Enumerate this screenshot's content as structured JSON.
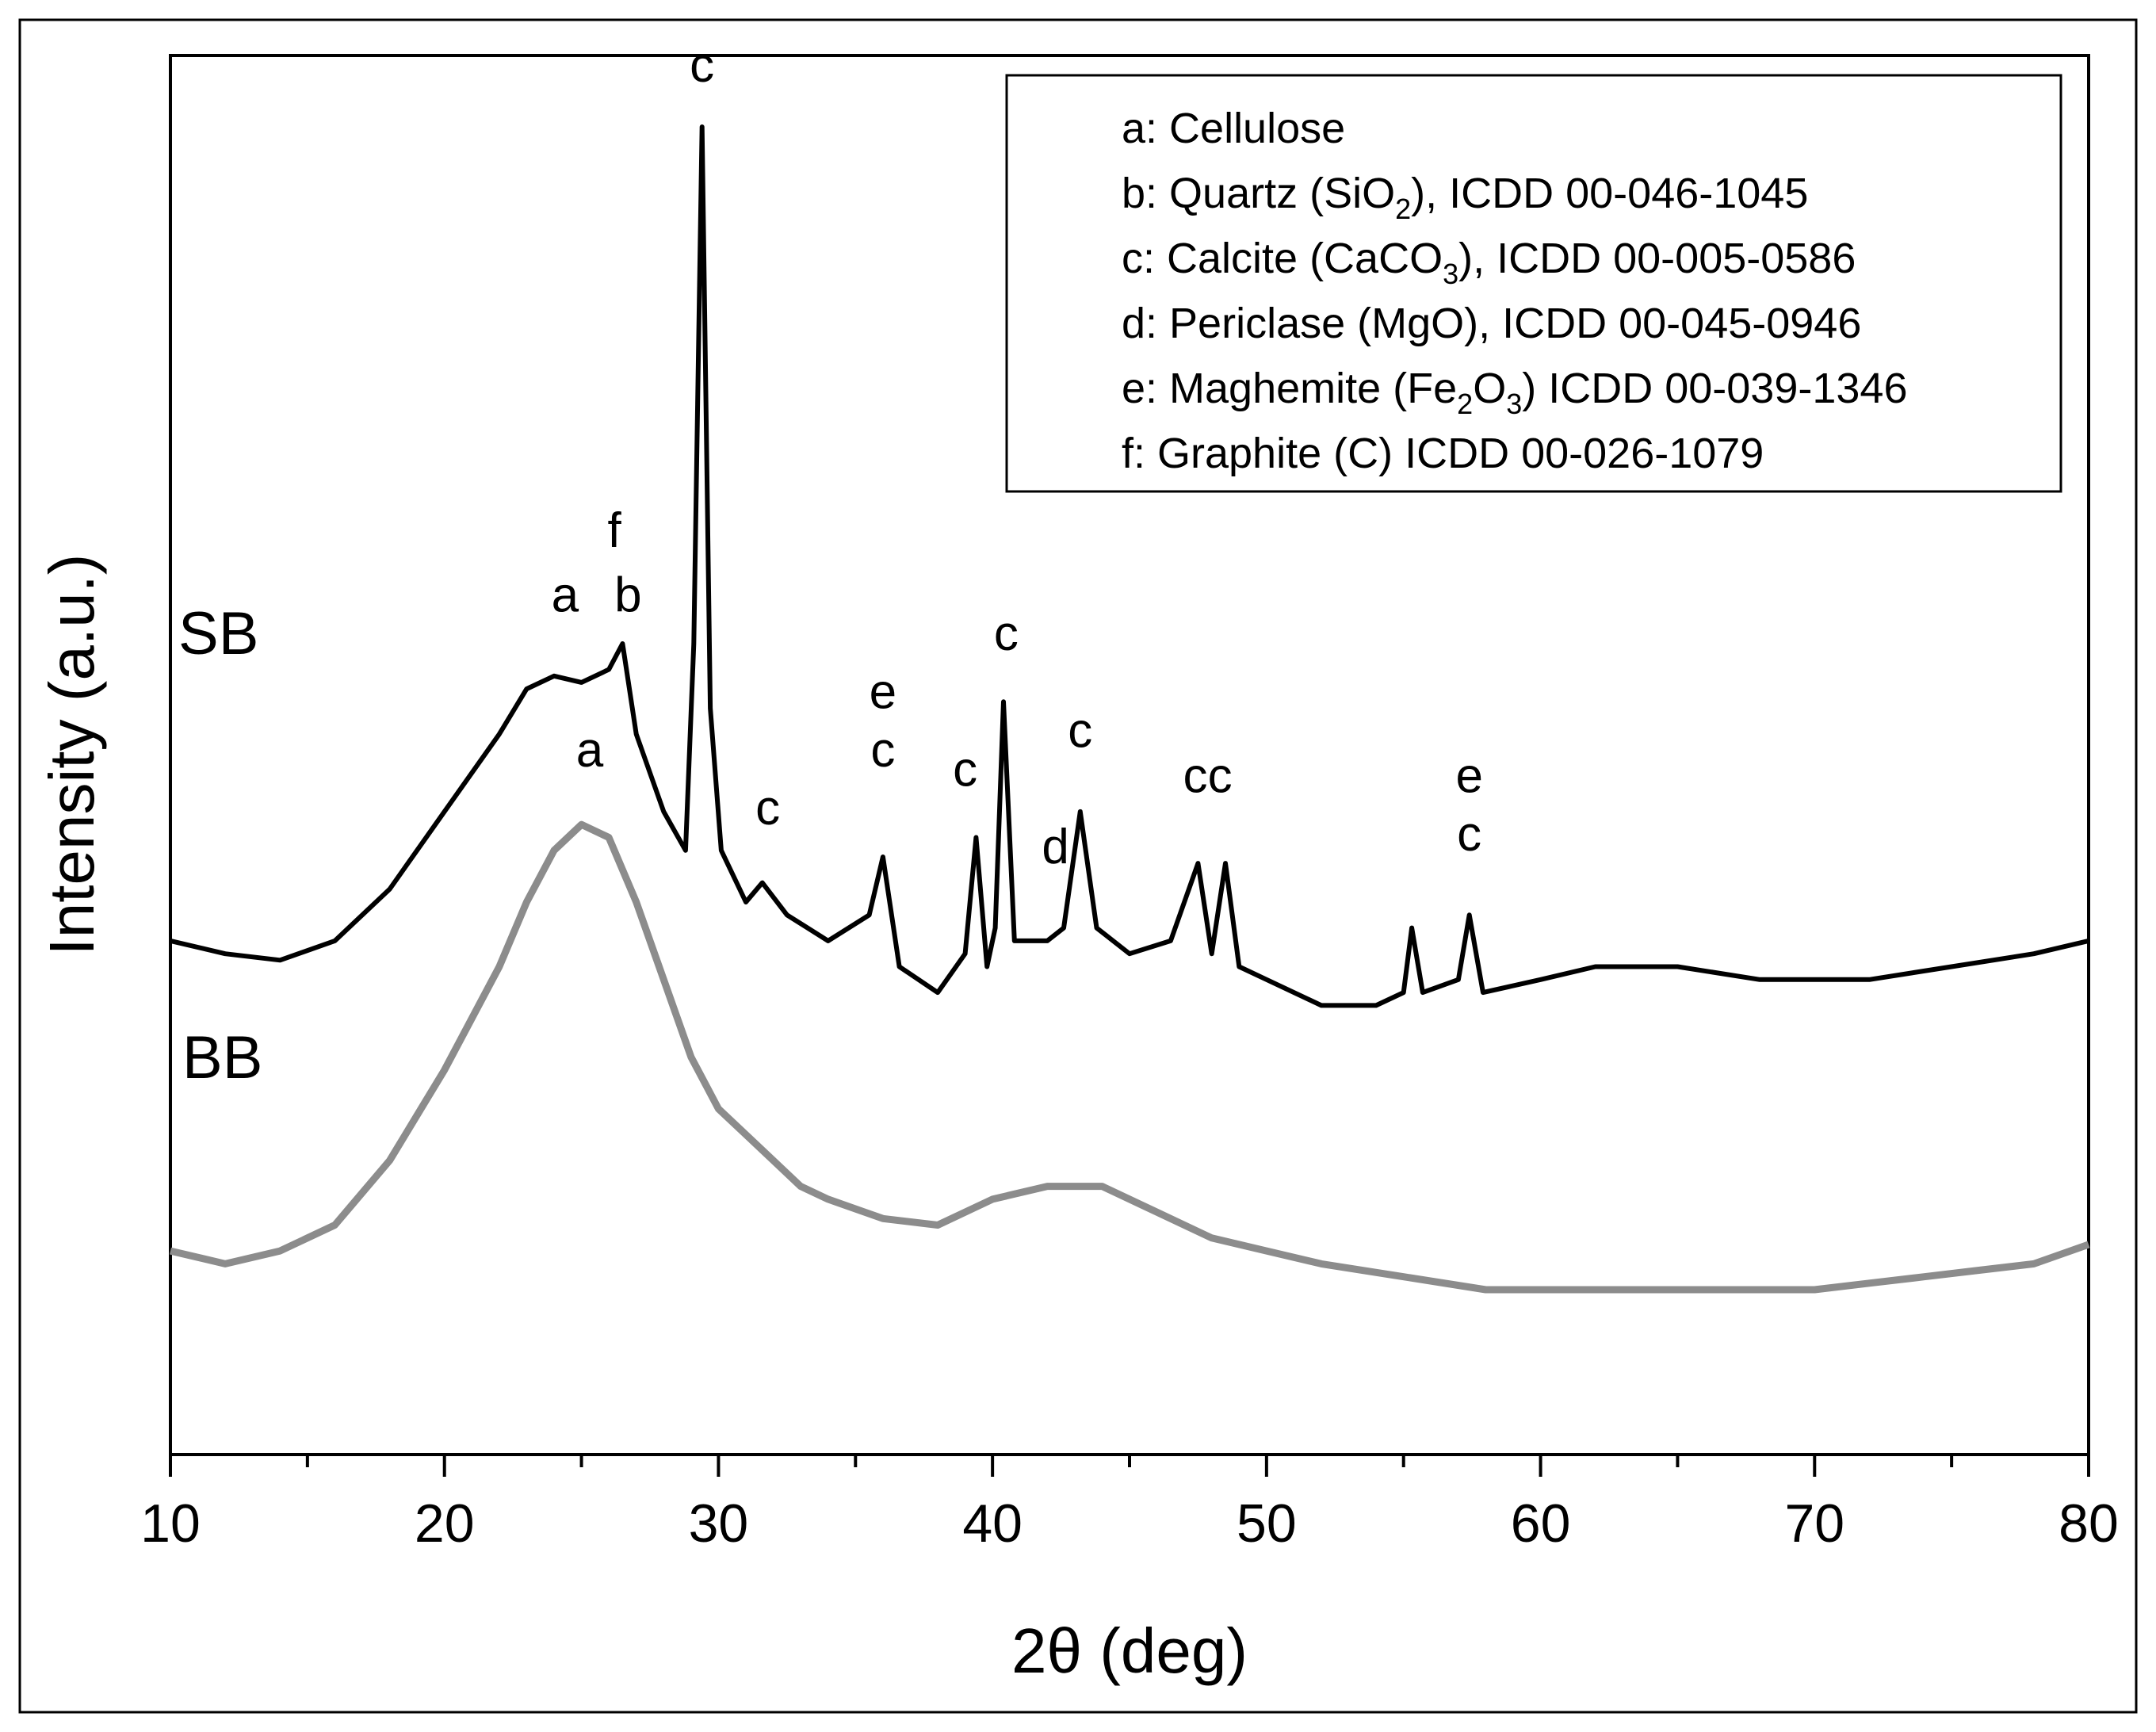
{
  "chart_data": {
    "type": "line",
    "xlabel": "2θ (deg)",
    "ylabel": "Intensity (a.u.)",
    "xlim": [
      10,
      80
    ],
    "ylim": [
      0,
      1
    ],
    "xticks": [
      10,
      20,
      30,
      40,
      50,
      60,
      70,
      80
    ],
    "xtick_labels": [
      "10",
      "20",
      "30",
      "40",
      "50",
      "60",
      "70",
      "80"
    ],
    "legend": {
      "placement": "top-right",
      "entries": [
        {
          "prefix": "a: Cellulose",
          "sub1": "",
          "mid": "",
          "sub2": "",
          "suffix": ""
        },
        {
          "prefix": "b: Quartz (SiO",
          "sub1": "2",
          "mid": "",
          "sub2": "",
          "suffix": "), ICDD 00-046-1045"
        },
        {
          "prefix": "c: Calcite (CaCO",
          "sub1": "3",
          "mid": "",
          "sub2": "",
          "suffix": "), ICDD 00-005-0586"
        },
        {
          "prefix": "d: Periclase (MgO), ICDD 00-045-0946",
          "sub1": "",
          "mid": "",
          "sub2": "",
          "suffix": ""
        },
        {
          "prefix": "e: Maghemite (Fe",
          "sub1": "2",
          "mid": "O",
          "sub2": "3",
          "suffix": ") ICDD 00-039-1346"
        },
        {
          "prefix": "f: Graphite (C) ICDD 00-026-1079",
          "sub1": "",
          "mid": "",
          "sub2": "",
          "suffix": ""
        }
      ]
    },
    "series": [
      {
        "name": "SB",
        "color": "#000000",
        "x": [
          10,
          12,
          14,
          16,
          18,
          20,
          21,
          22,
          23,
          24,
          25,
          26,
          26.5,
          27,
          28,
          28.8,
          29.1,
          29.4,
          29.7,
          30.1,
          31,
          31.6,
          32.5,
          34,
          35.5,
          36,
          36.6,
          38,
          39,
          39.4,
          39.8,
          40.1,
          40.4,
          40.8,
          42,
          42.6,
          43.2,
          43.8,
          45,
          46.5,
          47.5,
          48,
          48.5,
          49,
          50,
          52,
          54,
          55,
          55.3,
          55.7,
          57,
          57.4,
          57.9,
          60,
          62,
          65,
          68,
          70,
          72,
          75,
          78,
          80
        ],
        "y": [
          0.37,
          0.36,
          0.355,
          0.37,
          0.41,
          0.47,
          0.5,
          0.53,
          0.565,
          0.575,
          0.57,
          0.58,
          0.6,
          0.53,
          0.47,
          0.44,
          0.6,
          1.0,
          0.55,
          0.44,
          0.4,
          0.415,
          0.39,
          0.37,
          0.39,
          0.435,
          0.35,
          0.33,
          0.36,
          0.45,
          0.35,
          0.38,
          0.555,
          0.37,
          0.37,
          0.38,
          0.47,
          0.38,
          0.36,
          0.37,
          0.43,
          0.36,
          0.43,
          0.35,
          0.34,
          0.32,
          0.32,
          0.33,
          0.38,
          0.33,
          0.34,
          0.39,
          0.33,
          0.34,
          0.35,
          0.35,
          0.34,
          0.34,
          0.34,
          0.35,
          0.36,
          0.37
        ]
      },
      {
        "name": "BB",
        "color": "#8c8c8c",
        "x": [
          10,
          12,
          14,
          16,
          18,
          20,
          22,
          23,
          24,
          25,
          26,
          27,
          28,
          29,
          30,
          31,
          32,
          33,
          34,
          36,
          38,
          40,
          42,
          44,
          46,
          48,
          50,
          52,
          55,
          58,
          60,
          62,
          65,
          68,
          70,
          72,
          74,
          76,
          78,
          80
        ],
        "y": [
          0.13,
          0.12,
          0.13,
          0.15,
          0.2,
          0.27,
          0.35,
          0.4,
          0.44,
          0.46,
          0.45,
          0.4,
          0.34,
          0.28,
          0.24,
          0.22,
          0.2,
          0.18,
          0.17,
          0.155,
          0.15,
          0.17,
          0.18,
          0.18,
          0.16,
          0.14,
          0.13,
          0.12,
          0.11,
          0.1,
          0.1,
          0.1,
          0.1,
          0.1,
          0.1,
          0.105,
          0.11,
          0.115,
          0.12,
          0.135
        ]
      }
    ],
    "series_labels": [
      "SB",
      "BB"
    ],
    "annotations": [
      {
        "text": "a",
        "x": 24.4,
        "y": 0.625
      },
      {
        "text": "f",
        "x": 26.2,
        "y": 0.675
      },
      {
        "text": "b",
        "x": 26.7,
        "y": 0.625
      },
      {
        "text": "c",
        "x": 29.4,
        "y": 1.035
      },
      {
        "text": "c",
        "x": 31.8,
        "y": 0.46
      },
      {
        "text": "e",
        "x": 36.0,
        "y": 0.55
      },
      {
        "text": "c",
        "x": 36.0,
        "y": 0.505
      },
      {
        "text": "c",
        "x": 39.0,
        "y": 0.49
      },
      {
        "text": "c",
        "x": 40.5,
        "y": 0.595
      },
      {
        "text": "d",
        "x": 42.3,
        "y": 0.43
      },
      {
        "text": "c",
        "x": 43.2,
        "y": 0.52
      },
      {
        "text": "c",
        "x": 47.4,
        "y": 0.485
      },
      {
        "text": "c",
        "x": 48.3,
        "y": 0.485
      },
      {
        "text": "e",
        "x": 57.4,
        "y": 0.485
      },
      {
        "text": "c",
        "x": 57.4,
        "y": 0.44
      },
      {
        "text": "a",
        "x": 25.3,
        "y": 0.505
      }
    ]
  }
}
